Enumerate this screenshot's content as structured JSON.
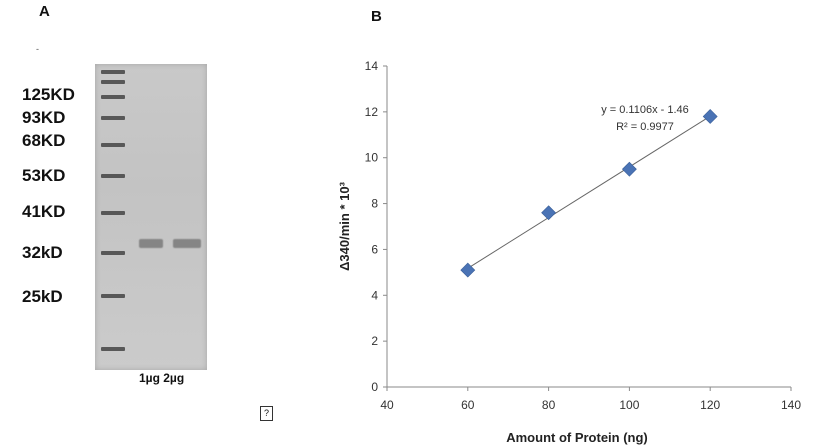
{
  "panels": {
    "a_letter": "A",
    "b_letter": "B"
  },
  "gel": {
    "marker_labels": [
      "125KD",
      "93KD",
      "68KD",
      "53KD",
      "41KD",
      "32kD",
      "25kD"
    ],
    "lane_label": "1µg 2µg",
    "top_mark": "-",
    "missing_glyph": "?"
  },
  "chart_data": {
    "type": "scatter",
    "xlabel": "Amount of Protein (ng)",
    "ylabel": "Δ340/min * 10³",
    "xlim": [
      40,
      140
    ],
    "ylim": [
      0,
      14
    ],
    "xticks": [
      40,
      60,
      80,
      100,
      120,
      140
    ],
    "yticks": [
      0,
      2,
      4,
      6,
      8,
      10,
      12,
      14
    ],
    "x": [
      60,
      80,
      100,
      120
    ],
    "y": [
      5.1,
      7.6,
      9.5,
      11.8
    ],
    "trendline": {
      "slope": 0.1106,
      "intercept": -1.46
    },
    "annotation": [
      "y = 0.1106x - 1.46",
      "R² = 0.9977"
    ],
    "marker_color": "#4a73b5",
    "line_color": "#666666",
    "grid": false
  }
}
